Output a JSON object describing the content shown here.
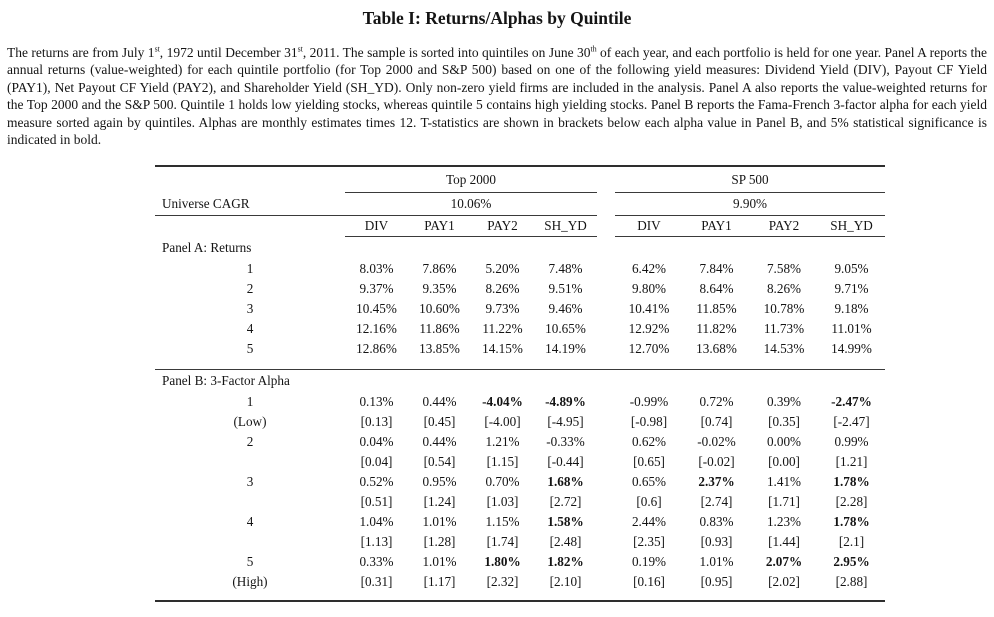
{
  "title": "Table I: Returns/Alphas by Quintile",
  "description_runs": [
    {
      "t": "The returns are from July 1"
    },
    {
      "t": "st",
      "sup": true
    },
    {
      "t": ", 1972 until December 31"
    },
    {
      "t": "st",
      "sup": true
    },
    {
      "t": ", 2011.  The sample is sorted into quintiles on June 30"
    },
    {
      "t": "th",
      "sup": true
    },
    {
      "t": " of each year, and each portfolio is held for one year. Panel A reports the annual returns (value-weighted) for each quintile portfolio (for Top 2000 and S&P 500) based on one of the following yield measures: Dividend Yield (DIV), Payout CF Yield (PAY1), Net Payout CF Yield (PAY2), and Shareholder Yield (SH_YD).  Only non-zero yield firms are included in the analysis. Panel A also reports the value-weighted returns for the Top 2000 and the S&P 500.  Quintile 1 holds low yielding stocks, whereas quintile 5 contains high yielding stocks.  Panel B reports the Fama-French 3-factor alpha for each yield measure sorted again by quintiles. Alphas are monthly estimates times 12. T-statistics are shown in brackets below each alpha value in Panel B, and 5% statistical significance is indicated in bold."
    }
  ],
  "table": {
    "universe_cagr_label": "Universe CAGR",
    "groups": [
      {
        "label": "Top 2000",
        "cagr": "10.06%"
      },
      {
        "label": "SP 500",
        "cagr": "9.90%"
      }
    ],
    "columns": [
      "DIV",
      "PAY1",
      "PAY2",
      "SH_YD"
    ],
    "panel_a": {
      "label": "Panel A: Returns",
      "rows": [
        {
          "quintile": "1",
          "values": [
            "8.03%",
            "7.86%",
            "5.20%",
            "7.48%",
            "6.42%",
            "7.84%",
            "7.58%",
            "9.05%"
          ]
        },
        {
          "quintile": "2",
          "values": [
            "9.37%",
            "9.35%",
            "8.26%",
            "9.51%",
            "9.80%",
            "8.64%",
            "8.26%",
            "9.71%"
          ]
        },
        {
          "quintile": "3",
          "values": [
            "10.45%",
            "10.60%",
            "9.73%",
            "9.46%",
            "10.41%",
            "11.85%",
            "10.78%",
            "9.18%"
          ]
        },
        {
          "quintile": "4",
          "values": [
            "12.16%",
            "11.86%",
            "11.22%",
            "10.65%",
            "12.92%",
            "11.82%",
            "11.73%",
            "11.01%"
          ]
        },
        {
          "quintile": "5",
          "values": [
            "12.86%",
            "13.85%",
            "14.15%",
            "14.19%",
            "12.70%",
            "13.68%",
            "14.53%",
            "14.99%"
          ]
        }
      ]
    },
    "panel_b": {
      "label": "Panel B: 3-Factor Alpha",
      "rows": [
        {
          "quintile": "1",
          "sub": "(Low)",
          "values": [
            "0.13%",
            "0.44%",
            "-4.04%",
            "-4.89%",
            "-0.99%",
            "0.72%",
            "0.39%",
            "-2.47%"
          ],
          "bold": [
            2,
            3,
            7
          ],
          "tstats": [
            "[0.13]",
            "[0.45]",
            "[-4.00]",
            "[-4.95]",
            "[-0.98]",
            "[0.74]",
            "[0.35]",
            "[-2.47]"
          ]
        },
        {
          "quintile": "2",
          "sub": "",
          "values": [
            "0.04%",
            "0.44%",
            "1.21%",
            "-0.33%",
            "0.62%",
            "-0.02%",
            "0.00%",
            "0.99%"
          ],
          "bold": [],
          "tstats": [
            "[0.04]",
            "[0.54]",
            "[1.15]",
            "[-0.44]",
            "[0.65]",
            "[-0.02]",
            "[0.00]",
            "[1.21]"
          ]
        },
        {
          "quintile": "3",
          "sub": "",
          "values": [
            "0.52%",
            "0.95%",
            "0.70%",
            "1.68%",
            "0.65%",
            "2.37%",
            "1.41%",
            "1.78%"
          ],
          "bold": [
            3,
            5,
            7
          ],
          "tstats": [
            "[0.51]",
            "[1.24]",
            "[1.03]",
            "[2.72]",
            "[0.6]",
            "[2.74]",
            "[1.71]",
            "[2.28]"
          ]
        },
        {
          "quintile": "4",
          "sub": "",
          "values": [
            "1.04%",
            "1.01%",
            "1.15%",
            "1.58%",
            "2.44%",
            "0.83%",
            "1.23%",
            "1.78%"
          ],
          "bold": [
            3,
            7
          ],
          "tstats": [
            "[1.13]",
            "[1.28]",
            "[1.74]",
            "[2.48]",
            "[2.35]",
            "[0.93]",
            "[1.44]",
            "[2.1]"
          ]
        },
        {
          "quintile": "5",
          "sub": "(High)",
          "values": [
            "0.33%",
            "1.01%",
            "1.80%",
            "1.82%",
            "0.19%",
            "1.01%",
            "2.07%",
            "2.95%"
          ],
          "bold": [
            2,
            3,
            6,
            7
          ],
          "tstats": [
            "[0.31]",
            "[1.17]",
            "[2.32]",
            "[2.10]",
            "[0.16]",
            "[0.95]",
            "[2.02]",
            "[2.88]"
          ]
        }
      ]
    }
  }
}
